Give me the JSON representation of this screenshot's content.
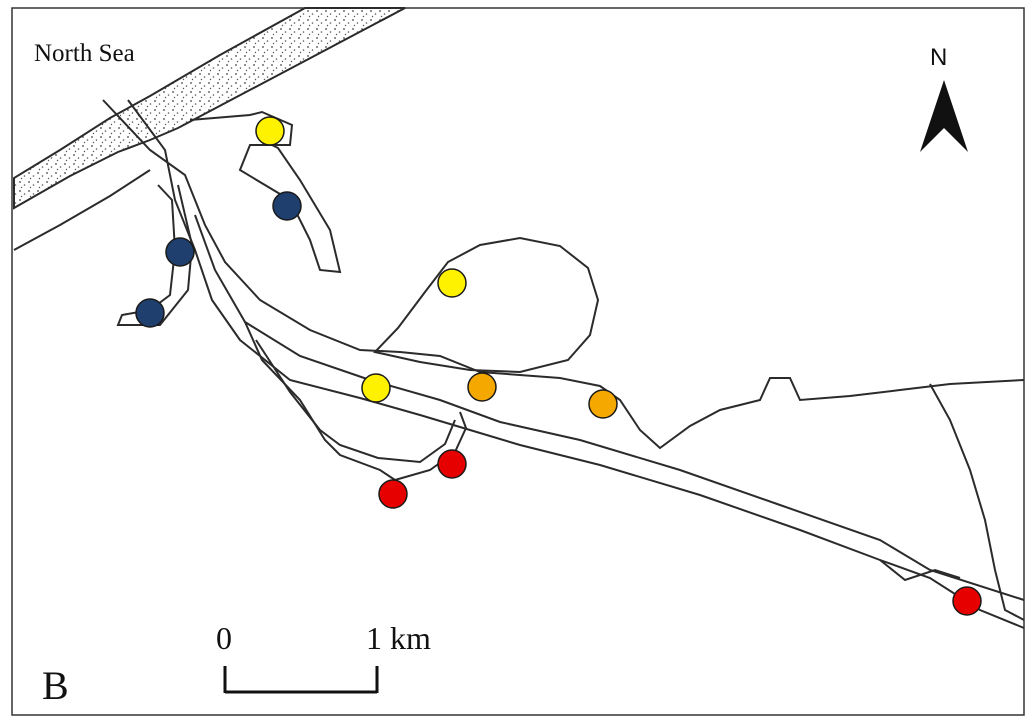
{
  "map": {
    "sea_label": "North Sea",
    "north_label": "N",
    "panel_letter": "B",
    "scale": {
      "start": "0",
      "end": "1 km"
    }
  },
  "colors": {
    "frame": "#333333",
    "shoreline": "#2b2b2b",
    "dune": "#d9d9d9",
    "marker_outline": "#1a1a1a",
    "yellow": "#fff200",
    "orange": "#f5a800",
    "red": "#e60000",
    "navy": "#1f3f6e"
  },
  "sites": [
    {
      "color": "yellow"
    },
    {
      "color": "yellow"
    },
    {
      "color": "yellow"
    },
    {
      "color": "orange"
    },
    {
      "color": "orange"
    },
    {
      "color": "red"
    },
    {
      "color": "red"
    },
    {
      "color": "red"
    },
    {
      "color": "navy"
    },
    {
      "color": "navy"
    },
    {
      "color": "navy"
    }
  ]
}
